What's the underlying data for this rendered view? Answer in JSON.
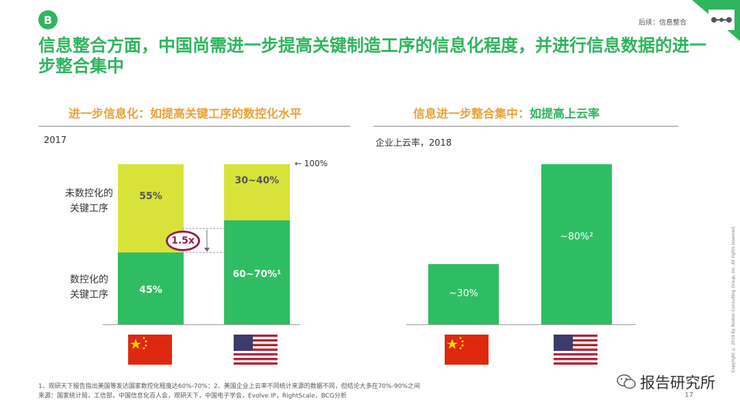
{
  "header": {
    "badge": "B",
    "breadcrumb": "后续：信息整合",
    "title": "信息整合方面，中国尚需进一步提高关键制造工序的信息化程度，并进行信息数据的进一步整合集中"
  },
  "left": {
    "heading_part1": "进一步信息化：",
    "heading_part2": "如提高关键工序的数控化水平",
    "year": "2017",
    "top_category": "未数控化的\n关键工序",
    "bottom_category": "数控化的\n关键工序",
    "pointer": "100%",
    "multiplier": "1.5x"
  },
  "right": {
    "heading_part1": "信息进一步整合集中：",
    "heading_part2": "如提高上云率",
    "subtitle": "企业上云率，2018"
  },
  "chart_data": [
    {
      "type": "bar",
      "stacked": true,
      "categories": [
        "China",
        "USA"
      ],
      "series": [
        {
          "values": [
            45,
            65
          ],
          "labels": [
            "45%",
            "60~70%¹"
          ]
        },
        {
          "values": [
            55,
            35
          ],
          "labels": [
            "55%",
            "30~40%"
          ]
        }
      ],
      "ylim": [
        0,
        100
      ],
      "colors": {
        "digitized": "#2fbd64",
        "non_digitized": "#d8e33a"
      }
    },
    {
      "type": "bar",
      "categories": [
        "China",
        "USA"
      ],
      "values": [
        30,
        80
      ],
      "labels": [
        "~30%",
        "~80%²"
      ],
      "ylim": [
        0,
        100
      ],
      "colors": {
        "bar": "#2fbd64"
      }
    }
  ],
  "footnotes": {
    "line1": "1、观研天下报告指出美国等发达国家数控化程度达60%-70%；2、美国企业上云率不同统计来源的数据不同，但结论大多在70%-90%之间",
    "line2": "来源：国家统计局，工信部，中国信息化百人会，观研天下，中国电子学会，Evolve IP，RightScale，BCG分析"
  },
  "copyright": "Copyright © 2019 by Boston Consulting Group, Inc. All rights reserved.",
  "watermark": "报告研究所",
  "page_number": "17",
  "colors": {
    "green": "#2fb55e",
    "bar_green": "#2fbd64",
    "lime": "#d8e33a",
    "orange": "#e8a33a",
    "maroon": "#9b1d45"
  }
}
